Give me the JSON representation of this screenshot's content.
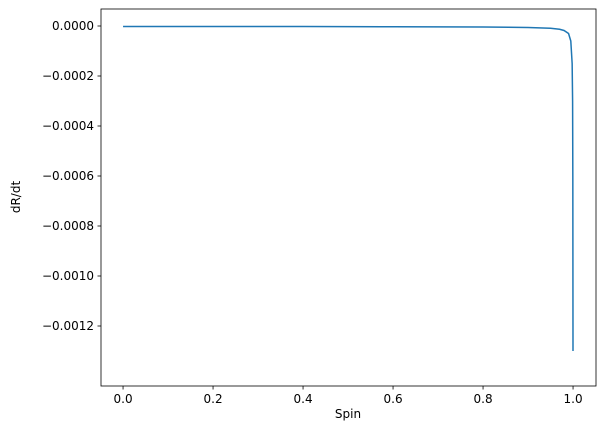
{
  "chart_data": {
    "type": "line",
    "x_label": "Spin",
    "y_label": "dR/dt",
    "x": [
      0,
      0.2,
      0.4,
      0.6,
      0.8,
      0.9,
      0.95,
      0.97,
      0.98,
      0.99,
      0.995,
      0.998,
      0.999,
      0.9995,
      0.9999
    ],
    "series": [
      {
        "color": "#1f77b4",
        "values": [
          -2e-06,
          -2e-06,
          -2e-06,
          -3e-06,
          -4e-06,
          -6e-06,
          -9e-06,
          -1.3e-05,
          -1.8e-05,
          -3e-05,
          -6e-05,
          -0.00015,
          -0.0003,
          -0.0006,
          -0.0013
        ]
      }
    ],
    "xlim": [
      -0.049,
      1.051
    ],
    "ylim": [
      -0.00144,
      6.8e-05
    ],
    "xticks": [
      {
        "value": 0,
        "label": "0.0"
      },
      {
        "value": 0.2,
        "label": "0.2"
      },
      {
        "value": 0.4,
        "label": "0.4"
      },
      {
        "value": 0.6,
        "label": "0.6"
      },
      {
        "value": 0.8,
        "label": "0.8"
      },
      {
        "value": 1,
        "label": "1.0"
      }
    ],
    "yticks": [
      {
        "value": 0,
        "label": "0.0000"
      },
      {
        "value": -0.0002,
        "label": "−0.0002"
      },
      {
        "value": -0.0004,
        "label": "−0.0004"
      },
      {
        "value": -0.0006,
        "label": "−0.0006"
      },
      {
        "value": -0.0008,
        "label": "−0.0008"
      },
      {
        "value": -0.001,
        "label": "−0.0010"
      },
      {
        "value": -0.0012,
        "label": "−0.0012"
      }
    ]
  }
}
